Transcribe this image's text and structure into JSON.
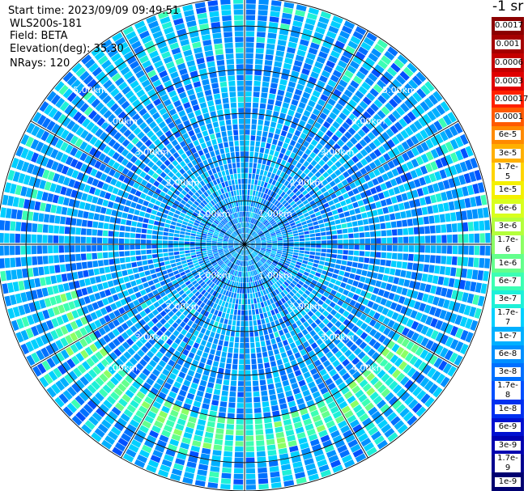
{
  "info": {
    "start_time": "Start time: 2023/09/09 09:49:51",
    "instrument": "WLS200s-181",
    "field": "Field: BETA",
    "elevation": "Elevation(deg): 35.30",
    "nrays": "NRays: 120"
  },
  "colorbar": {
    "unit_label": "-1 sr",
    "labels": [
      "0.0017",
      "0.001",
      "0.0006",
      "0.0003",
      "0.00017",
      "0.0001",
      "6e-5",
      "3e-5",
      "1.7e-5",
      "1e-5",
      "6e-6",
      "3e-6",
      "1.7e-6",
      "1e-6",
      "6e-7",
      "3e-7",
      "1.7e-7",
      "1e-7",
      "6e-8",
      "3e-8",
      "1.7e-8",
      "1e-8",
      "6e-9",
      "3e-9",
      "1.7e-9",
      "1e-9"
    ],
    "colors": [
      "#8b0000",
      "#a50000",
      "#c40000",
      "#e00000",
      "#ff2000",
      "#ff5a00",
      "#ff8a00",
      "#ffb000",
      "#ffd400",
      "#f4f000",
      "#d8ff1e",
      "#b4ff3c",
      "#8cff64",
      "#64ff8c",
      "#3cffb4",
      "#1ef0d8",
      "#00d0ff",
      "#00b0ff",
      "#0090ff",
      "#0070ff",
      "#0050ff",
      "#0030f0",
      "#0010d0",
      "#0000b0",
      "#000090",
      "#000070"
    ]
  },
  "chart_data": {
    "type": "heatmap",
    "title": "",
    "projection": "polar PPI",
    "field": "BETA",
    "elevation_deg": 35.3,
    "n_rays": 120,
    "range_rings_km": [
      1.0,
      2.0,
      3.0,
      4.0,
      5.0
    ],
    "range_ring_labels": [
      "1.00km",
      "2.00km",
      "3.00km",
      "4.00km",
      "5.00km"
    ],
    "max_range_km": 5.65,
    "color_scale": "log",
    "value_range": [
      1e-09,
      0.0017
    ],
    "typical_value": 6e-08,
    "enhanced_band": {
      "range_km": [
        4.0,
        4.7
      ],
      "azimuth_deg": [
        120,
        255
      ],
      "peak_value": 1.7e-06
    }
  }
}
